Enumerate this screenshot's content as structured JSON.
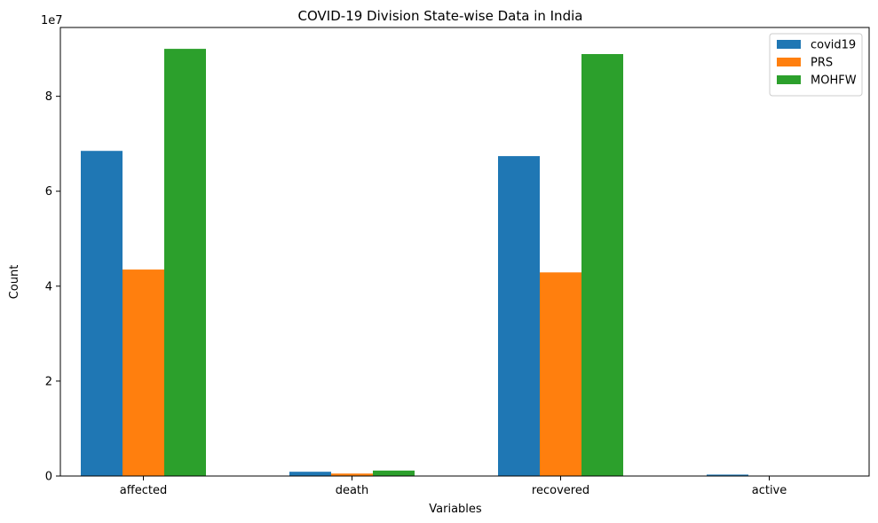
{
  "chart_data": {
    "type": "bar",
    "title": "COVID-19 Division State-wise Data in India",
    "xlabel": "Variables",
    "ylabel": "Count",
    "y_offset_label": "1e7",
    "y_tick_labels": [
      "0",
      "2",
      "4",
      "6",
      "8"
    ],
    "y_ticks": [
      0,
      20000000,
      40000000,
      60000000,
      80000000
    ],
    "ylim": [
      0,
      94500000
    ],
    "categories": [
      "affected",
      "death",
      "recovered",
      "active"
    ],
    "series": [
      {
        "name": "covid19",
        "color": "#1f77b4",
        "values": [
          68500000,
          900000,
          67400000,
          300000
        ]
      },
      {
        "name": "PRS",
        "color": "#ff7f0e",
        "values": [
          43500000,
          520000,
          42900000,
          80000
        ]
      },
      {
        "name": "MOHFW",
        "color": "#2ca02c",
        "values": [
          90000000,
          1150000,
          88900000,
          50000
        ]
      }
    ],
    "legend_position": "top-right",
    "grid": false
  }
}
